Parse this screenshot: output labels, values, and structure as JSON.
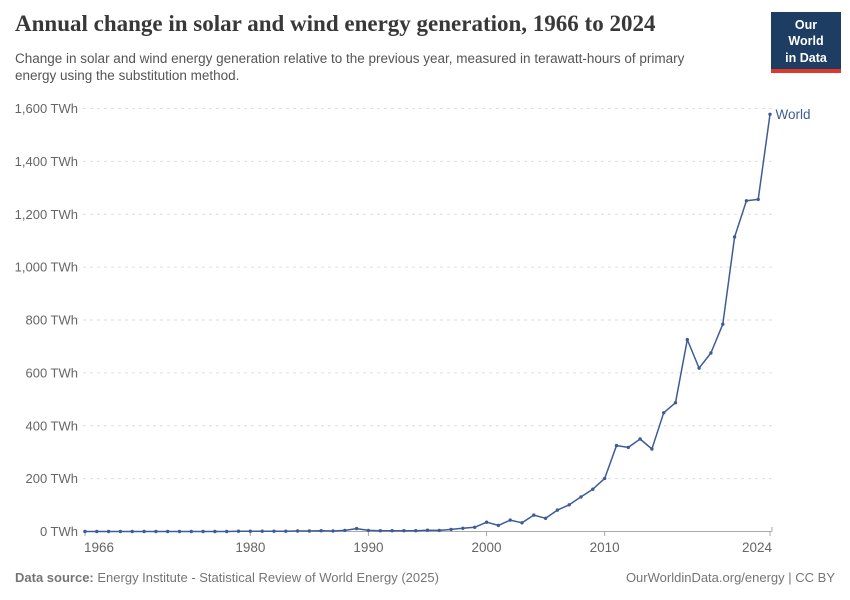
{
  "header": {
    "title": "Annual change in solar and wind energy generation, 1966 to 2024",
    "subtitle": "Change in solar and wind energy generation relative to the previous year, measured in terawatt-hours of primary energy using the substitution method.",
    "logo": {
      "line1": "Our World",
      "line2": "in Data",
      "bg_color": "#1d3d63",
      "accent_color": "#e0372b"
    }
  },
  "chart_data": {
    "type": "line",
    "title": "Annual change in solar and wind energy generation, 1966 to 2024",
    "xlabel": "",
    "ylabel": "",
    "unit": "TWh",
    "xlim": [
      1966,
      2024
    ],
    "ylim": [
      0,
      1600
    ],
    "grid": "horizontal-dashed",
    "legend": "line-end-label",
    "x_ticks": [
      {
        "value": 1966,
        "label": "1966"
      },
      {
        "value": 1980,
        "label": "1980"
      },
      {
        "value": 1990,
        "label": "1990"
      },
      {
        "value": 2000,
        "label": "2000"
      },
      {
        "value": 2010,
        "label": "2010"
      },
      {
        "value": 2024,
        "label": "2024"
      }
    ],
    "y_ticks": [
      {
        "value": 0,
        "label": "0 TWh"
      },
      {
        "value": 200,
        "label": "200 TWh"
      },
      {
        "value": 400,
        "label": "400 TWh"
      },
      {
        "value": 600,
        "label": "600 TWh"
      },
      {
        "value": 800,
        "label": "800 TWh"
      },
      {
        "value": 1000,
        "label": "1,000 TWh"
      },
      {
        "value": 1200,
        "label": "1,200 TWh"
      },
      {
        "value": 1400,
        "label": "1,400 TWh"
      },
      {
        "value": 1600,
        "label": "1,600 TWh"
      }
    ],
    "series": [
      {
        "name": "World",
        "color": "#3d5c97",
        "years": [
          1966,
          1967,
          1968,
          1969,
          1970,
          1971,
          1972,
          1973,
          1974,
          1975,
          1976,
          1977,
          1978,
          1979,
          1980,
          1981,
          1982,
          1983,
          1984,
          1985,
          1986,
          1987,
          1988,
          1989,
          1990,
          1991,
          1992,
          1993,
          1994,
          1995,
          1996,
          1997,
          1998,
          1999,
          2000,
          2001,
          2002,
          2003,
          2004,
          2005,
          2006,
          2007,
          2008,
          2009,
          2010,
          2011,
          2012,
          2013,
          2014,
          2015,
          2016,
          2017,
          2018,
          2019,
          2020,
          2021,
          2022,
          2023,
          2024
        ],
        "values": [
          0,
          0,
          0,
          0,
          0,
          0,
          0,
          0,
          0,
          0,
          0,
          0,
          0,
          1,
          1,
          1,
          1,
          1,
          2,
          2,
          3,
          2,
          4,
          11,
          4,
          3,
          3,
          3,
          3,
          5,
          4,
          8,
          12,
          16,
          35,
          23,
          43,
          33,
          62,
          50,
          81,
          101,
          131,
          160,
          201,
          325,
          318,
          350,
          312,
          449,
          487,
          726,
          618,
          675,
          784,
          1114,
          1251,
          1256,
          1578
        ]
      }
    ]
  },
  "footer": {
    "datasource_label": "Data source:",
    "datasource_value": "Energy Institute - Statistical Review of World Energy (2025)",
    "attribution": "OurWorldinData.org/energy | CC BY"
  }
}
